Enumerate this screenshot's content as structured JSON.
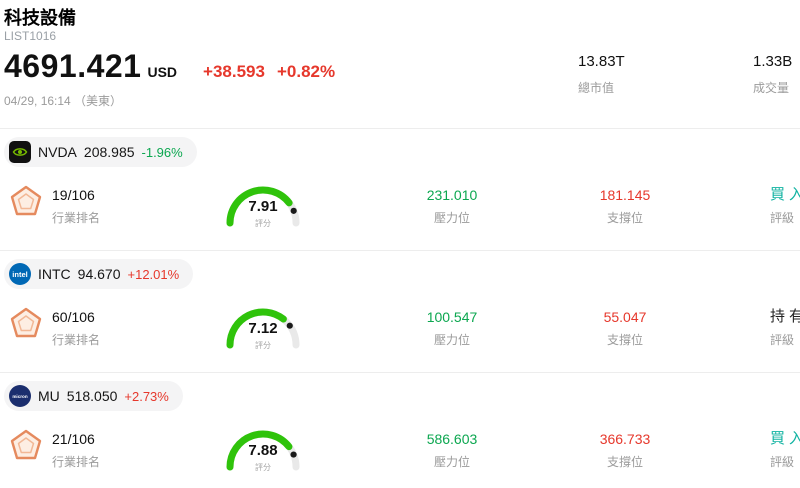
{
  "header": {
    "title": "科技設備",
    "list_id": "LIST1016",
    "price": "4691.421",
    "currency": "USD",
    "change": "+38.593",
    "change_pct": "+0.82%",
    "timestamp": "04/29, 16:14 （美東）",
    "market_cap": {
      "value": "13.83T",
      "label": "總市值"
    },
    "volume": {
      "value": "1.33B",
      "label": "成交量"
    }
  },
  "labels": {
    "rank": "行業排名",
    "score": "評分",
    "resistance": "壓力位",
    "support": "支撐位",
    "rating": "評級"
  },
  "colors": {
    "up": "#e6382c",
    "down": "#0ca750",
    "buy": "#12b3a2",
    "hold": "#222222",
    "gauge": "#2fc30b"
  },
  "stocks": [
    {
      "ticker": "NVDA",
      "logo": "nvidia-logo",
      "price": "208.985",
      "change_pct": "-1.96%",
      "direction": "down",
      "rank": "19/106",
      "score": "7.91",
      "score_value": 7.91,
      "resistance": "231.010",
      "support": "181.145",
      "rating": "買入",
      "rating_type": "buy"
    },
    {
      "ticker": "INTC",
      "logo": "intel-logo",
      "price": "94.670",
      "change_pct": "+12.01%",
      "direction": "up",
      "rank": "60/106",
      "score": "7.12",
      "score_value": 7.12,
      "resistance": "100.547",
      "support": "55.047",
      "rating": "持有",
      "rating_type": "hold"
    },
    {
      "ticker": "MU",
      "logo": "micron-logo",
      "price": "518.050",
      "change_pct": "+2.73%",
      "direction": "up",
      "rank": "21/106",
      "score": "7.88",
      "score_value": 7.88,
      "resistance": "586.603",
      "support": "366.733",
      "rating": "買入",
      "rating_type": "buy"
    }
  ]
}
